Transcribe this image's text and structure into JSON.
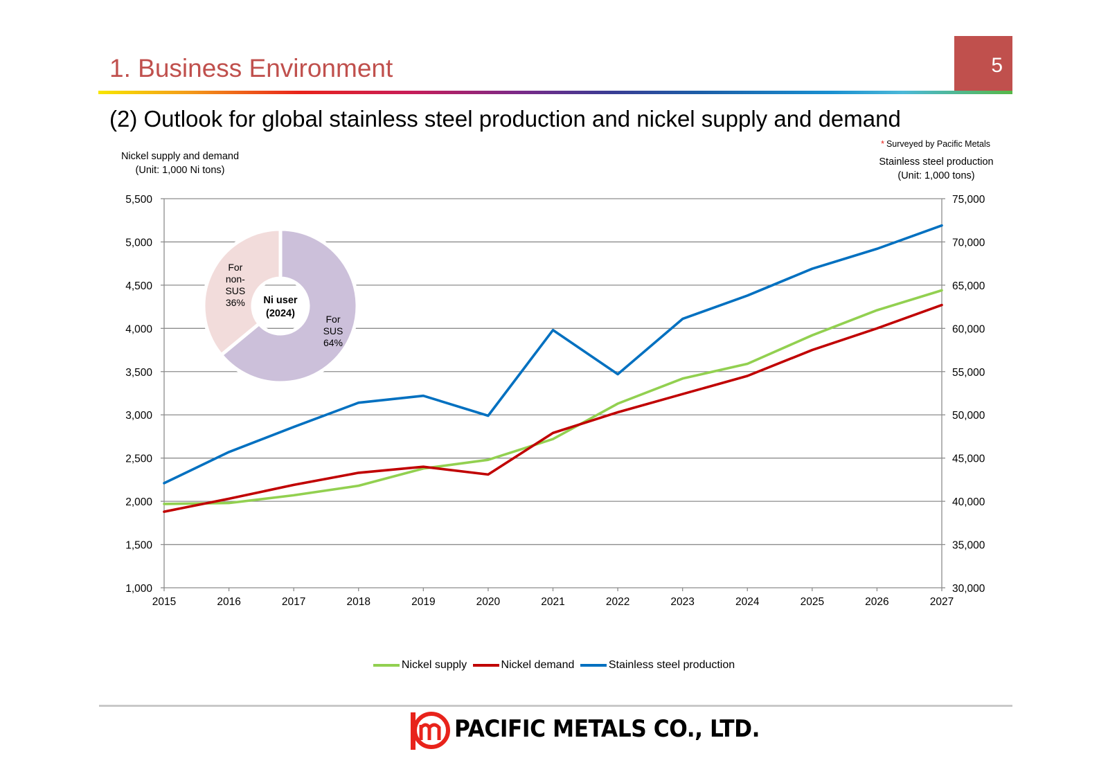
{
  "header": {
    "section_title": "1. Business Environment",
    "page_number": "5",
    "subtitle": "(2) Outlook for global stainless steel production and nickel supply and demand",
    "note_star": "*",
    "note": "Surveyed by Pacific Metals"
  },
  "colors": {
    "accent": "#c0504d",
    "nickel_supply": "#92d050",
    "nickel_demand": "#c00000",
    "stainless": "#0070c0",
    "pie_sus": "#ccc0da",
    "pie_non_sus": "#f2dcdb"
  },
  "chart_data": [
    {
      "type": "line",
      "title": "",
      "left_axis_title": [
        "Nickel supply and demand",
        "(Unit: 1,000 Ni tons)"
      ],
      "right_axis_title": [
        "Stainless steel production",
        "(Unit: 1,000 tons)"
      ],
      "x": [
        "2015",
        "2016",
        "2017",
        "2018",
        "2019",
        "2020",
        "2021",
        "2022",
        "2023",
        "2024",
        "2025",
        "2026",
        "2027"
      ],
      "ylim_left": [
        1000,
        5500
      ],
      "ylim_right": [
        30000,
        75000
      ],
      "yticks_left": [
        "1,000",
        "1,500",
        "2,000",
        "2,500",
        "3,000",
        "3,500",
        "4,000",
        "4,500",
        "5,000",
        "5,500"
      ],
      "yticks_right": [
        "30,000",
        "35,000",
        "40,000",
        "45,000",
        "50,000",
        "55,000",
        "60,000",
        "65,000",
        "70,000",
        "75,000"
      ],
      "grid": true,
      "legend_position": "bottom",
      "series": [
        {
          "name": "Nickel supply",
          "axis": "left",
          "color": "#92d050",
          "values": [
            1970,
            1980,
            2070,
            2180,
            2380,
            2480,
            2720,
            3130,
            3420,
            3590,
            3920,
            4210,
            4440
          ]
        },
        {
          "name": "Nickel demand",
          "axis": "left",
          "color": "#c00000",
          "values": [
            1880,
            2030,
            2190,
            2330,
            2400,
            2310,
            2790,
            3030,
            3240,
            3450,
            3750,
            4000,
            4270
          ]
        },
        {
          "name": "Stainless steel production",
          "axis": "right",
          "color": "#0070c0",
          "values": [
            42100,
            45700,
            48600,
            51400,
            52200,
            49900,
            59800,
            54700,
            61100,
            63800,
            66900,
            69200,
            71900
          ]
        }
      ]
    },
    {
      "type": "pie",
      "title": "Ni user (2024)",
      "center_label": [
        "Ni user",
        "(2024)"
      ],
      "slices": [
        {
          "label": [
            "For",
            "SUS",
            "64%"
          ],
          "name": "For SUS",
          "value": 64,
          "color": "#ccc0da"
        },
        {
          "label": [
            "For",
            "non-",
            "SUS",
            "36%"
          ],
          "name": "For non-SUS",
          "value": 36,
          "color": "#f2dcdb"
        }
      ]
    }
  ],
  "footer": {
    "company": "PACIFIC METALS CO., LTD."
  }
}
